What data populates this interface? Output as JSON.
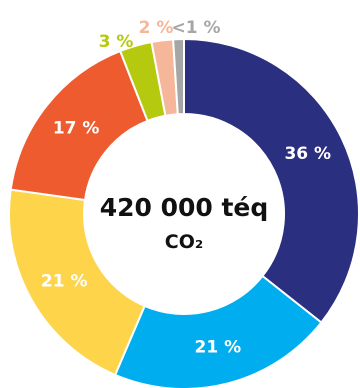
{
  "chart_data": {
    "type": "pie",
    "donut": true,
    "center_label": {
      "line1": "420 000 téq",
      "line2": "CO₂"
    },
    "slices": [
      {
        "label": "36 %",
        "value": 36,
        "color": "#2b2f7f",
        "label_color": "#ffffff"
      },
      {
        "label": "21 %",
        "value": 21,
        "color": "#00aeef",
        "label_color": "#ffffff"
      },
      {
        "label": "21 %",
        "value": 21,
        "color": "#fdd44a",
        "label_color": "#ffffff"
      },
      {
        "label": "17 %",
        "value": 17,
        "color": "#ee5b2f",
        "label_color": "#ffffff"
      },
      {
        "label": "3 %",
        "value": 3,
        "color": "#b5c90e",
        "label_color": "#b5c90e"
      },
      {
        "label": "2 %",
        "value": 2,
        "color": "#f6b69a",
        "label_color": "#f6b69a"
      },
      {
        "label": "<1 %",
        "value": 1,
        "color": "#a6a6a6",
        "label_color": "#a6a6a6"
      }
    ]
  }
}
